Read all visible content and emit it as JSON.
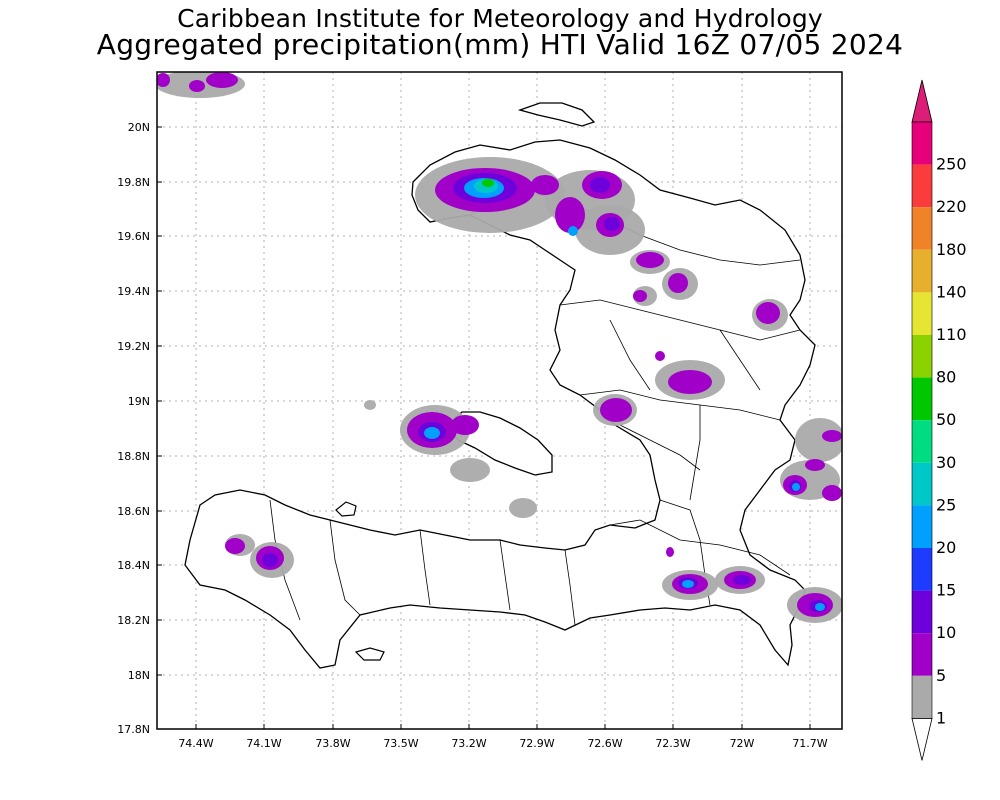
{
  "title": {
    "line1": "Caribbean Institute for Meteorology and Hydrology",
    "line2": "Aggregated precipitation(mm) HTI Valid 16Z 07/05 2024"
  },
  "axes": {
    "lon_ticks": [
      "74.4W",
      "74.1W",
      "73.8W",
      "73.5W",
      "73.2W",
      "72.9W",
      "72.6W",
      "72.3W",
      "72W",
      "71.7W"
    ],
    "lat_ticks": [
      "20N",
      "19.8N",
      "19.6N",
      "19.4N",
      "19.2N",
      "19N",
      "18.8N",
      "18.6N",
      "18.4N",
      "18.2N",
      "18N",
      "17.8N"
    ]
  },
  "colorbar": {
    "levels": [
      "1",
      "5",
      "10",
      "15",
      "20",
      "25",
      "30",
      "50",
      "80",
      "110",
      "140",
      "180",
      "220",
      "250"
    ],
    "colors": [
      "#aaaaaa",
      "#a000c8",
      "#6e00dc",
      "#1e3cff",
      "#00a0ff",
      "#00c8c8",
      "#00dc82",
      "#00c800",
      "#8cd200",
      "#e6e632",
      "#e6af2d",
      "#f08228",
      "#fa3c3c",
      "#e6007a"
    ],
    "top_arrow_color": "#dc1e78",
    "bottom_arrow_color": "#ffffff"
  },
  "colors": {
    "land_outline": "#000000",
    "light_precip": "#aaaaaa",
    "moderate_precip": "#a000c8",
    "heavy_precip": "#6e00dc",
    "core_precip": "#00a0ff",
    "peak_precip": "#00c800"
  }
}
